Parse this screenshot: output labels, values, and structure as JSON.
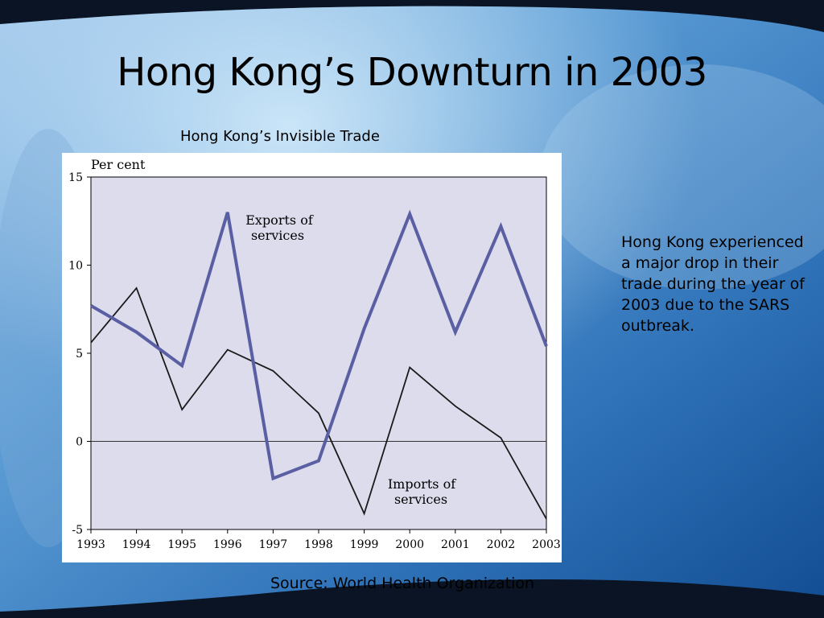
{
  "slide": {
    "title": "Hong Kong’s Downturn in 2003",
    "chart_caption": "Hong Kong’s Invisible Trade",
    "side_text": "Hong Kong experienced a major drop in their trade during the year of 2003 due to the SARS outbreak.",
    "source": "Source: World Health Organization"
  },
  "colors": {
    "exports": "#5a5fa3",
    "imports": "#1a1a1a",
    "plot_bg": "#dcdcec"
  },
  "chart_data": {
    "type": "line",
    "ylabel": "Per cent",
    "ylim": [
      -5,
      15
    ],
    "yticks": [
      15,
      10,
      5,
      0,
      -5
    ],
    "x": [
      "1993",
      "1994",
      "1995",
      "1996",
      "1997",
      "1998",
      "1999",
      "2000",
      "2001",
      "2002",
      "2003"
    ],
    "series": [
      {
        "name": "Exports of services",
        "label_lines": [
          "Exports of",
          "services"
        ],
        "values": [
          7.7,
          6.2,
          4.3,
          13.0,
          -2.1,
          -1.1,
          6.4,
          12.9,
          6.2,
          12.2,
          5.4
        ]
      },
      {
        "name": "Imports of services",
        "label_lines": [
          "Imports of",
          "services"
        ],
        "values": [
          5.6,
          8.7,
          1.8,
          5.2,
          4.0,
          1.6,
          -4.1,
          4.2,
          2.0,
          0.2,
          -4.4
        ]
      }
    ]
  }
}
